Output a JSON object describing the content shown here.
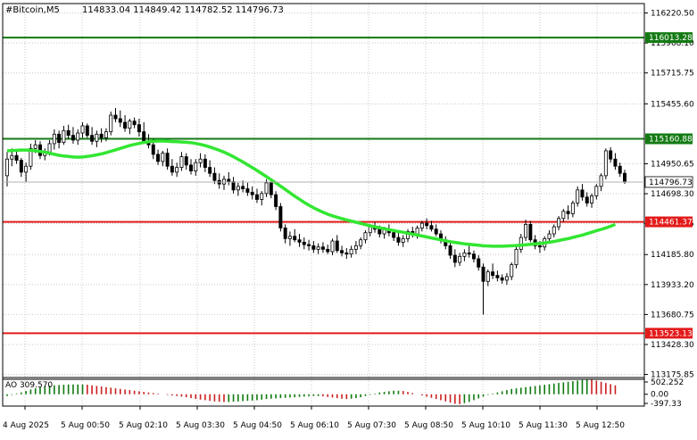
{
  "header": {
    "symbol": "#Bitcoin,M5",
    "ohlc": "114833.04 114849.42 114782.52 114796.73"
  },
  "colors": {
    "background": "#ffffff",
    "grid": "#c8c8c8",
    "candle": "#000000",
    "ma_line": "#32e632",
    "resistance_line": "#137a13",
    "support_line": "#e31a1a",
    "ao_up": "#0f7a0f",
    "ao_down": "#cc1f1f"
  },
  "chart_data": {
    "type": "candlestick",
    "y_ticks": [
      "116220.50",
      "115968.10",
      "115715.75",
      "115455.60",
      "114950.65",
      "114698.30",
      "114445.95",
      "114185.80",
      "113933.20",
      "113680.75",
      "113428.30",
      "113175.85"
    ],
    "x_ticks": [
      "4 Aug 2025",
      "5 Aug 00:50",
      "5 Aug 02:10",
      "5 Aug 03:30",
      "5 Aug 04:50",
      "5 Aug 06:10",
      "5 Aug 07:30",
      "5 Aug 08:50",
      "5 Aug 10:10",
      "5 Aug 11:30",
      "5 Aug 12:50"
    ],
    "ylim": [
      113150,
      116300
    ],
    "grid": true,
    "levels": [
      {
        "label": "116013.28",
        "value": 116013.28,
        "kind": "resistance"
      },
      {
        "label": "115160.88",
        "value": 115160.88,
        "kind": "resistance"
      },
      {
        "label": "114461.37",
        "value": 114461.37,
        "kind": "support"
      },
      {
        "label": "113523.13",
        "value": 113523.13,
        "kind": "support"
      }
    ],
    "last_price": {
      "label": "114796.73",
      "value": 114796.73
    },
    "ohlc": [
      [
        114850,
        115050,
        114760,
        114990
      ],
      [
        114990,
        115080,
        114930,
        115020
      ],
      [
        115020,
        115060,
        114950,
        114980
      ],
      [
        114980,
        115000,
        114840,
        114880
      ],
      [
        114880,
        114960,
        114800,
        114930
      ],
      [
        114930,
        115120,
        114900,
        115080
      ],
      [
        115080,
        115150,
        115040,
        115110
      ],
      [
        115110,
        115140,
        114990,
        115020
      ],
      [
        115020,
        115080,
        114980,
        115050
      ],
      [
        115050,
        115150,
        115020,
        115120
      ],
      [
        115120,
        115240,
        115070,
        115200
      ],
      [
        115200,
        115230,
        115080,
        115130
      ],
      [
        115130,
        115270,
        115110,
        115230
      ],
      [
        115230,
        115280,
        115160,
        115190
      ],
      [
        115190,
        115260,
        115120,
        115150
      ],
      [
        115150,
        115240,
        115110,
        115210
      ],
      [
        115210,
        115300,
        115170,
        115270
      ],
      [
        115270,
        115290,
        115170,
        115190
      ],
      [
        115190,
        115260,
        115110,
        115140
      ],
      [
        115140,
        115230,
        115090,
        115200
      ],
      [
        115200,
        115250,
        115130,
        115170
      ],
      [
        115170,
        115250,
        115140,
        115220
      ],
      [
        115220,
        115390,
        115190,
        115360
      ],
      [
        115360,
        115420,
        115300,
        115330
      ],
      [
        115330,
        115400,
        115260,
        115300
      ],
      [
        115300,
        115360,
        115220,
        115250
      ],
      [
        115250,
        115330,
        115200,
        115310
      ],
      [
        115310,
        115340,
        115250,
        115280
      ],
      [
        115280,
        115330,
        115180,
        115220
      ],
      [
        115220,
        115300,
        115120,
        115140
      ],
      [
        115140,
        115200,
        115080,
        115110
      ],
      [
        115110,
        115160,
        114990,
        115030
      ],
      [
        115030,
        115070,
        114940,
        114970
      ],
      [
        114970,
        115060,
        114930,
        115040
      ],
      [
        115040,
        115080,
        114900,
        114930
      ],
      [
        114930,
        114990,
        114850,
        114880
      ],
      [
        114880,
        114960,
        114840,
        114920
      ],
      [
        114920,
        115050,
        114890,
        115010
      ],
      [
        115010,
        115040,
        114900,
        114940
      ],
      [
        114940,
        114990,
        114860,
        114890
      ],
      [
        114890,
        114990,
        114850,
        114960
      ],
      [
        114960,
        115040,
        114920,
        114990
      ],
      [
        114990,
        115030,
        114880,
        114920
      ],
      [
        114920,
        114980,
        114840,
        114870
      ],
      [
        114870,
        114920,
        114780,
        114810
      ],
      [
        114810,
        114870,
        114740,
        114780
      ],
      [
        114780,
        114850,
        114730,
        114820
      ],
      [
        114820,
        114880,
        114770,
        114800
      ],
      [
        114800,
        114840,
        114700,
        114730
      ],
      [
        114730,
        114790,
        114680,
        114760
      ],
      [
        114760,
        114810,
        114710,
        114740
      ],
      [
        114740,
        114790,
        114680,
        114710
      ],
      [
        114710,
        114760,
        114650,
        114690
      ],
      [
        114690,
        114740,
        114620,
        114650
      ],
      [
        114650,
        114720,
        114600,
        114700
      ],
      [
        114700,
        114820,
        114670,
        114790
      ],
      [
        114790,
        114830,
        114660,
        114690
      ],
      [
        114690,
        114720,
        114560,
        114590
      ],
      [
        114590,
        114620,
        114380,
        114410
      ],
      [
        114410,
        114440,
        114280,
        114320
      ],
      [
        114320,
        114380,
        114260,
        114340
      ],
      [
        114340,
        114400,
        114290,
        114310
      ],
      [
        114310,
        114360,
        114250,
        114290
      ],
      [
        114290,
        114330,
        114230,
        114270
      ],
      [
        114270,
        114310,
        114220,
        114260
      ],
      [
        114260,
        114300,
        114200,
        114230
      ],
      [
        114230,
        114280,
        114190,
        114250
      ],
      [
        114250,
        114290,
        114200,
        114230
      ],
      [
        114230,
        114270,
        114190,
        114210
      ],
      [
        114210,
        114320,
        114180,
        114300
      ],
      [
        114300,
        114350,
        114200,
        114220
      ],
      [
        114220,
        114260,
        114170,
        114200
      ],
      [
        114200,
        114240,
        114150,
        114190
      ],
      [
        114190,
        114260,
        114160,
        114230
      ],
      [
        114230,
        114300,
        114190,
        114260
      ],
      [
        114260,
        114330,
        114230,
        114310
      ],
      [
        114310,
        114390,
        114280,
        114370
      ],
      [
        114370,
        114440,
        114340,
        114420
      ],
      [
        114420,
        114460,
        114370,
        114400
      ],
      [
        114400,
        114430,
        114330,
        114360
      ],
      [
        114360,
        114420,
        114320,
        114400
      ],
      [
        114400,
        114440,
        114340,
        114370
      ],
      [
        114370,
        114400,
        114300,
        114330
      ],
      [
        114330,
        114370,
        114260,
        114290
      ],
      [
        114290,
        114350,
        114250,
        114320
      ],
      [
        114320,
        114400,
        114290,
        114380
      ],
      [
        114380,
        114420,
        114330,
        114360
      ],
      [
        114360,
        114430,
        114320,
        114410
      ],
      [
        114410,
        114470,
        114380,
        114450
      ],
      [
        114450,
        114490,
        114400,
        114430
      ],
      [
        114430,
        114470,
        114380,
        114400
      ],
      [
        114400,
        114440,
        114340,
        114360
      ],
      [
        114360,
        114390,
        114280,
        114310
      ],
      [
        114310,
        114340,
        114230,
        114260
      ],
      [
        114260,
        114290,
        114150,
        114180
      ],
      [
        114180,
        114230,
        114080,
        114120
      ],
      [
        114120,
        114200,
        114090,
        114170
      ],
      [
        114170,
        114230,
        114130,
        114200
      ],
      [
        114200,
        114260,
        114160,
        114190
      ],
      [
        114190,
        114220,
        114120,
        114150
      ],
      [
        114150,
        114180,
        114050,
        114080
      ],
      [
        114080,
        114110,
        113680,
        113960
      ],
      [
        113960,
        114060,
        113920,
        114040
      ],
      [
        114040,
        114110,
        113980,
        114010
      ],
      [
        114010,
        114050,
        113960,
        113990
      ],
      [
        113990,
        114020,
        113940,
        113970
      ],
      [
        113970,
        114030,
        113930,
        114000
      ],
      [
        114000,
        114120,
        113970,
        114100
      ],
      [
        114100,
        114260,
        114070,
        114230
      ],
      [
        114230,
        114360,
        114200,
        114330
      ],
      [
        114330,
        114480,
        114300,
        114440
      ],
      [
        114440,
        114470,
        114290,
        114310
      ],
      [
        114310,
        114350,
        114230,
        114260
      ],
      [
        114260,
        114300,
        114200,
        114250
      ],
      [
        114250,
        114340,
        114220,
        114320
      ],
      [
        114320,
        114390,
        114280,
        114360
      ],
      [
        114360,
        114440,
        114330,
        114420
      ],
      [
        114420,
        114510,
        114390,
        114490
      ],
      [
        114490,
        114570,
        114460,
        114550
      ],
      [
        114550,
        114600,
        114480,
        114530
      ],
      [
        114530,
        114640,
        114500,
        114620
      ],
      [
        114620,
        114760,
        114590,
        114730
      ],
      [
        114730,
        114780,
        114640,
        114670
      ],
      [
        114670,
        114710,
        114590,
        114620
      ],
      [
        114620,
        114700,
        114580,
        114680
      ],
      [
        114680,
        114780,
        114650,
        114760
      ],
      [
        114760,
        114870,
        114720,
        114850
      ],
      [
        114850,
        115080,
        114820,
        115060
      ],
      [
        115060,
        115090,
        114960,
        114990
      ],
      [
        114990,
        115040,
        114900,
        114930
      ],
      [
        114930,
        114960,
        114840,
        114870
      ],
      [
        114870,
        114900,
        114780,
        114800
      ]
    ],
    "moving_average": [
      115060,
      115062,
      115064,
      115066,
      115066,
      115064,
      115060,
      115054,
      115048,
      115040,
      115030,
      115022,
      115016,
      115012,
      115008,
      115006,
      115008,
      115012,
      115018,
      115026,
      115034,
      115044,
      115056,
      115068,
      115080,
      115092,
      115104,
      115114,
      115122,
      115130,
      115136,
      115140,
      115142,
      115142,
      115140,
      115138,
      115136,
      115134,
      115132,
      115128,
      115122,
      115114,
      115104,
      115092,
      115078,
      115064,
      115048,
      115030,
      115010,
      114988,
      114966,
      114942,
      114918,
      114894,
      114868,
      114842,
      114816,
      114790,
      114762,
      114734,
      114706,
      114678,
      114652,
      114626,
      114602,
      114580,
      114560,
      114542,
      114526,
      114512,
      114500,
      114488,
      114478,
      114468,
      114458,
      114448,
      114438,
      114428,
      114420,
      114412,
      114404,
      114396,
      114388,
      114380,
      114374,
      114366,
      114358,
      114350,
      114342,
      114334,
      114326,
      114318,
      114310,
      114302,
      114294,
      114288,
      114282,
      114276,
      114272,
      114268,
      114264,
      114260,
      114258,
      114256,
      114256,
      114256,
      114258,
      114260,
      114262,
      114264,
      114268,
      114272,
      114276,
      114280,
      114284,
      114290,
      114296,
      114304,
      114312,
      114320,
      114330,
      114340,
      114350,
      114362,
      114374,
      114386,
      114398,
      114410,
      114424,
      114440
    ],
    "ao": {
      "label": "AO 309.570",
      "ticks": [
        "502.252",
        "0.00",
        "-397.33"
      ],
      "range": [
        -397.33,
        502.252
      ],
      "values": [
        -60,
        -20,
        20,
        60,
        110,
        160,
        200,
        240,
        270,
        290,
        300,
        310,
        320,
        330,
        330,
        330,
        330,
        320,
        300,
        280,
        260,
        240,
        220,
        200,
        180,
        160,
        140,
        120,
        100,
        80,
        60,
        40,
        20,
        0,
        -20,
        -40,
        -60,
        -80,
        -100,
        -130,
        -160,
        -180,
        -200,
        -220,
        -240,
        -250,
        -260,
        -260,
        -250,
        -240,
        -230,
        -220,
        -210,
        -200,
        -180,
        -160,
        -150,
        -140,
        -130,
        -120,
        -110,
        -100,
        -90,
        -80,
        -70,
        -60,
        -60,
        -70,
        -90,
        -110,
        -130,
        -150,
        -160,
        -150,
        -130,
        -100,
        -60,
        -20,
        20,
        60,
        80,
        100,
        120,
        120,
        110,
        80,
        40,
        0,
        -40,
        -80,
        -120,
        -160,
        -200,
        -240,
        -280,
        -320,
        -330,
        -300,
        -260,
        -200,
        -140,
        -80,
        -20,
        20,
        60,
        100,
        140,
        180,
        200,
        220,
        240,
        260,
        280,
        300,
        320,
        340,
        360,
        380,
        400,
        420,
        440,
        460,
        480,
        500,
        490,
        460,
        420,
        380,
        340,
        300
      ]
    }
  }
}
